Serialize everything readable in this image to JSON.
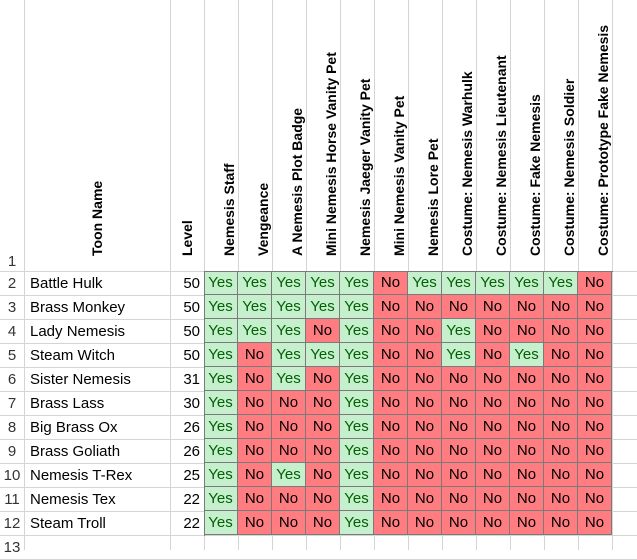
{
  "sheet": {
    "row_numbers": [
      "1",
      "2",
      "3",
      "4",
      "5",
      "6",
      "7",
      "8",
      "9",
      "10",
      "11",
      "12",
      "13"
    ],
    "headers": {
      "toon_name": "Toon Name",
      "level": "Level",
      "items": [
        "Nemesis Staff",
        "Vengeance",
        "A Nemesis Plot Badge",
        "Mini Nemesis Horse Vanity Pet",
        "Nemesis Jaeger Vanity Pet",
        "Mini Nemesis Vanity Pet",
        "Nemesis Lore Pet",
        "Costume: Nemesis Warhulk",
        "Costume: Nemesis Lieutenant",
        "Costume: Fake Nemesis",
        "Costume: Nemesis Soldier",
        "Costume: Prototype Fake Nemesis"
      ]
    },
    "colors": {
      "yes_fill": "#c6efce",
      "yes_text": "#006100",
      "no_fill": "#ff7c80",
      "no_text": "#000000"
    },
    "rows": [
      {
        "name": "Battle Hulk",
        "level": "50",
        "values": [
          "Yes",
          "Yes",
          "Yes",
          "Yes",
          "Yes",
          "No",
          "Yes",
          "Yes",
          "Yes",
          "Yes",
          "Yes",
          "No"
        ]
      },
      {
        "name": "Brass Monkey",
        "level": "50",
        "values": [
          "Yes",
          "Yes",
          "Yes",
          "Yes",
          "Yes",
          "No",
          "No",
          "No",
          "No",
          "No",
          "No",
          "No"
        ]
      },
      {
        "name": "Lady Nemesis",
        "level": "50",
        "values": [
          "Yes",
          "Yes",
          "Yes",
          "No",
          "Yes",
          "No",
          "No",
          "Yes",
          "No",
          "No",
          "No",
          "No"
        ]
      },
      {
        "name": "Steam Witch",
        "level": "50",
        "values": [
          "Yes",
          "No",
          "Yes",
          "Yes",
          "Yes",
          "No",
          "No",
          "Yes",
          "No",
          "Yes",
          "No",
          "No"
        ]
      },
      {
        "name": "Sister Nemesis",
        "level": "31",
        "values": [
          "Yes",
          "No",
          "Yes",
          "No",
          "Yes",
          "No",
          "No",
          "No",
          "No",
          "No",
          "No",
          "No"
        ]
      },
      {
        "name": "Brass Lass",
        "level": "30",
        "values": [
          "Yes",
          "No",
          "No",
          "No",
          "Yes",
          "No",
          "No",
          "No",
          "No",
          "No",
          "No",
          "No"
        ]
      },
      {
        "name": "Big Brass Ox",
        "level": "26",
        "values": [
          "Yes",
          "No",
          "No",
          "No",
          "Yes",
          "No",
          "No",
          "No",
          "No",
          "No",
          "No",
          "No"
        ]
      },
      {
        "name": "Brass Goliath",
        "level": "26",
        "values": [
          "Yes",
          "No",
          "No",
          "No",
          "Yes",
          "No",
          "No",
          "No",
          "No",
          "No",
          "No",
          "No"
        ]
      },
      {
        "name": "Nemesis T-Rex",
        "level": "25",
        "values": [
          "Yes",
          "No",
          "Yes",
          "No",
          "Yes",
          "No",
          "No",
          "No",
          "No",
          "No",
          "No",
          "No"
        ]
      },
      {
        "name": "Nemesis Tex",
        "level": "22",
        "values": [
          "Yes",
          "No",
          "No",
          "No",
          "Yes",
          "No",
          "No",
          "No",
          "No",
          "No",
          "No",
          "No"
        ]
      },
      {
        "name": "Steam Troll",
        "level": "22",
        "values": [
          "Yes",
          "No",
          "No",
          "No",
          "Yes",
          "No",
          "No",
          "No",
          "No",
          "No",
          "No",
          "No"
        ]
      }
    ]
  }
}
